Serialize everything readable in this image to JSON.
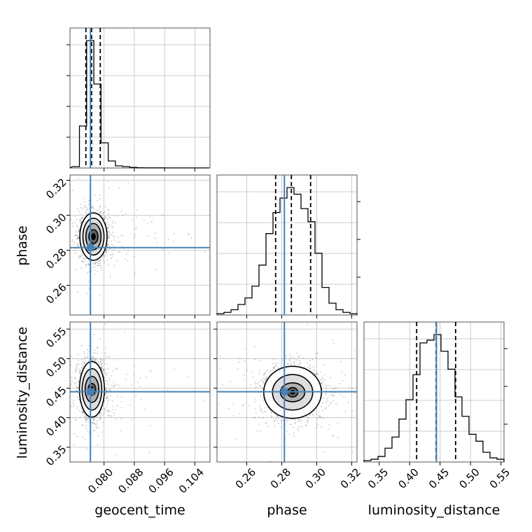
{
  "chart_data": {
    "type": "corner",
    "parameters": [
      "geocent_time",
      "phase",
      "luminosity_distance"
    ],
    "truths": {
      "geocent_time": 0.0764,
      "phase": 0.2815,
      "luminosity_distance": 0.444
    },
    "truth_color": "#4682b4",
    "grid": true,
    "geocent_time_hist": {
      "xlim": [
        0.071,
        0.108
      ],
      "xticks": [
        "0.080",
        "0.088",
        "0.096",
        "0.104"
      ],
      "quantiles": [
        0.0752,
        0.0767,
        0.079
      ],
      "bin_edges": [
        0.0716,
        0.0735,
        0.0754,
        0.0773,
        0.0792,
        0.0811,
        0.083,
        0.0849,
        0.0868,
        0.0887,
        0.0906,
        0.0925,
        0.0944,
        0.0963,
        0.0982,
        0.1001,
        0.102,
        0.1039,
        0.1058,
        0.1077
      ],
      "counts": [
        0.01,
        0.3,
        0.91,
        0.6,
        0.18,
        0.05,
        0.015,
        0.01,
        0.004,
        0.002,
        0.001,
        0.001,
        0.001,
        0.0005,
        0.0005,
        0.0005,
        0.0005,
        0.0005,
        0.0005
      ]
    },
    "phase_hist": {
      "xlim": [
        0.243,
        0.323
      ],
      "xticks": [
        "0.26",
        "0.28",
        "0.30",
        "0.32"
      ],
      "quantiles": [
        0.2765,
        0.2855,
        0.2965
      ],
      "bin_edges": [
        0.243,
        0.247,
        0.251,
        0.255,
        0.259,
        0.263,
        0.267,
        0.271,
        0.275,
        0.279,
        0.283,
        0.287,
        0.291,
        0.295,
        0.299,
        0.303,
        0.307,
        0.311,
        0.315,
        0.319,
        0.323
      ],
      "counts": [
        0.01,
        0.02,
        0.04,
        0.08,
        0.13,
        0.22,
        0.38,
        0.62,
        0.78,
        0.89,
        0.97,
        0.92,
        0.81,
        0.71,
        0.47,
        0.21,
        0.09,
        0.04,
        0.02,
        0.01
      ]
    },
    "luminosity_distance_hist": {
      "xlim": [
        0.325,
        0.555
      ],
      "xticks": [
        "0.35",
        "0.40",
        "0.45",
        "0.50",
        "0.55"
      ],
      "quantiles": [
        0.4115,
        0.4435,
        0.4755
      ],
      "bin_edges": [
        0.325,
        0.3365,
        0.348,
        0.3595,
        0.371,
        0.3825,
        0.394,
        0.4055,
        0.417,
        0.4285,
        0.44,
        0.4515,
        0.463,
        0.4745,
        0.486,
        0.4975,
        0.509,
        0.5205,
        0.532,
        0.5435,
        0.555
      ],
      "counts": [
        0.01,
        0.02,
        0.04,
        0.1,
        0.18,
        0.31,
        0.45,
        0.63,
        0.86,
        0.88,
        0.92,
        0.8,
        0.67,
        0.47,
        0.33,
        0.2,
        0.15,
        0.07,
        0.03,
        0.02
      ]
    },
    "phase_vs_geocent_time": {
      "xlim": [
        0.071,
        0.108
      ],
      "ylim": [
        0.243,
        0.323
      ],
      "yticks": [
        "0.26",
        "0.28",
        "0.30",
        "0.32"
      ],
      "center": [
        0.0772,
        0.2878
      ],
      "contour_sigmas": [
        [
          0.0012,
          0.004
        ],
        [
          0.002,
          0.0075
        ],
        [
          0.0028,
          0.0105
        ],
        [
          0.0036,
          0.0135
        ]
      ]
    },
    "luminosity_distance_vs_geocent_time": {
      "xlim": [
        0.071,
        0.108
      ],
      "ylim": [
        0.325,
        0.562
      ],
      "yticks": [
        "0.35",
        "0.40",
        "0.45",
        "0.50",
        "0.55"
      ],
      "center": [
        0.0768,
        0.448
      ],
      "contour_sigmas": [
        [
          0.001,
          0.01
        ],
        [
          0.0018,
          0.022
        ],
        [
          0.0026,
          0.035
        ],
        [
          0.0033,
          0.047
        ]
      ]
    },
    "luminosity_distance_vs_phase": {
      "xlim": [
        0.243,
        0.323
      ],
      "ylim": [
        0.325,
        0.562
      ],
      "center": [
        0.2862,
        0.443
      ],
      "contour_sigmas": [
        [
          0.003,
          0.008
        ],
        [
          0.007,
          0.016
        ],
        [
          0.0115,
          0.03
        ],
        [
          0.0165,
          0.044
        ]
      ]
    }
  }
}
